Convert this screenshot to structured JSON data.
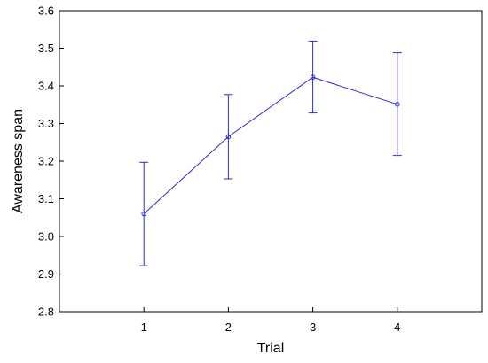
{
  "chart_data": {
    "type": "line",
    "title": "",
    "xlabel": "Trial",
    "ylabel": "Awareness span",
    "x": [
      1,
      2,
      3,
      4
    ],
    "x_ticks": [
      "1",
      "2",
      "3",
      "4"
    ],
    "xlim": [
      0,
      5
    ],
    "y_ticks": [
      "2.8",
      "2.9",
      "3.0",
      "3.1",
      "3.2",
      "3.3",
      "3.4",
      "3.5",
      "3.6"
    ],
    "ylim": [
      2.8,
      3.6
    ],
    "grid": false,
    "legend": "none",
    "series": [
      {
        "values": [
          3.06,
          3.265,
          3.423,
          3.351
        ],
        "error_low": [
          2.922,
          3.153,
          3.328,
          3.215
        ],
        "error_high": [
          3.197,
          3.377,
          3.519,
          3.488
        ],
        "color": "#2b2bd6"
      }
    ]
  }
}
